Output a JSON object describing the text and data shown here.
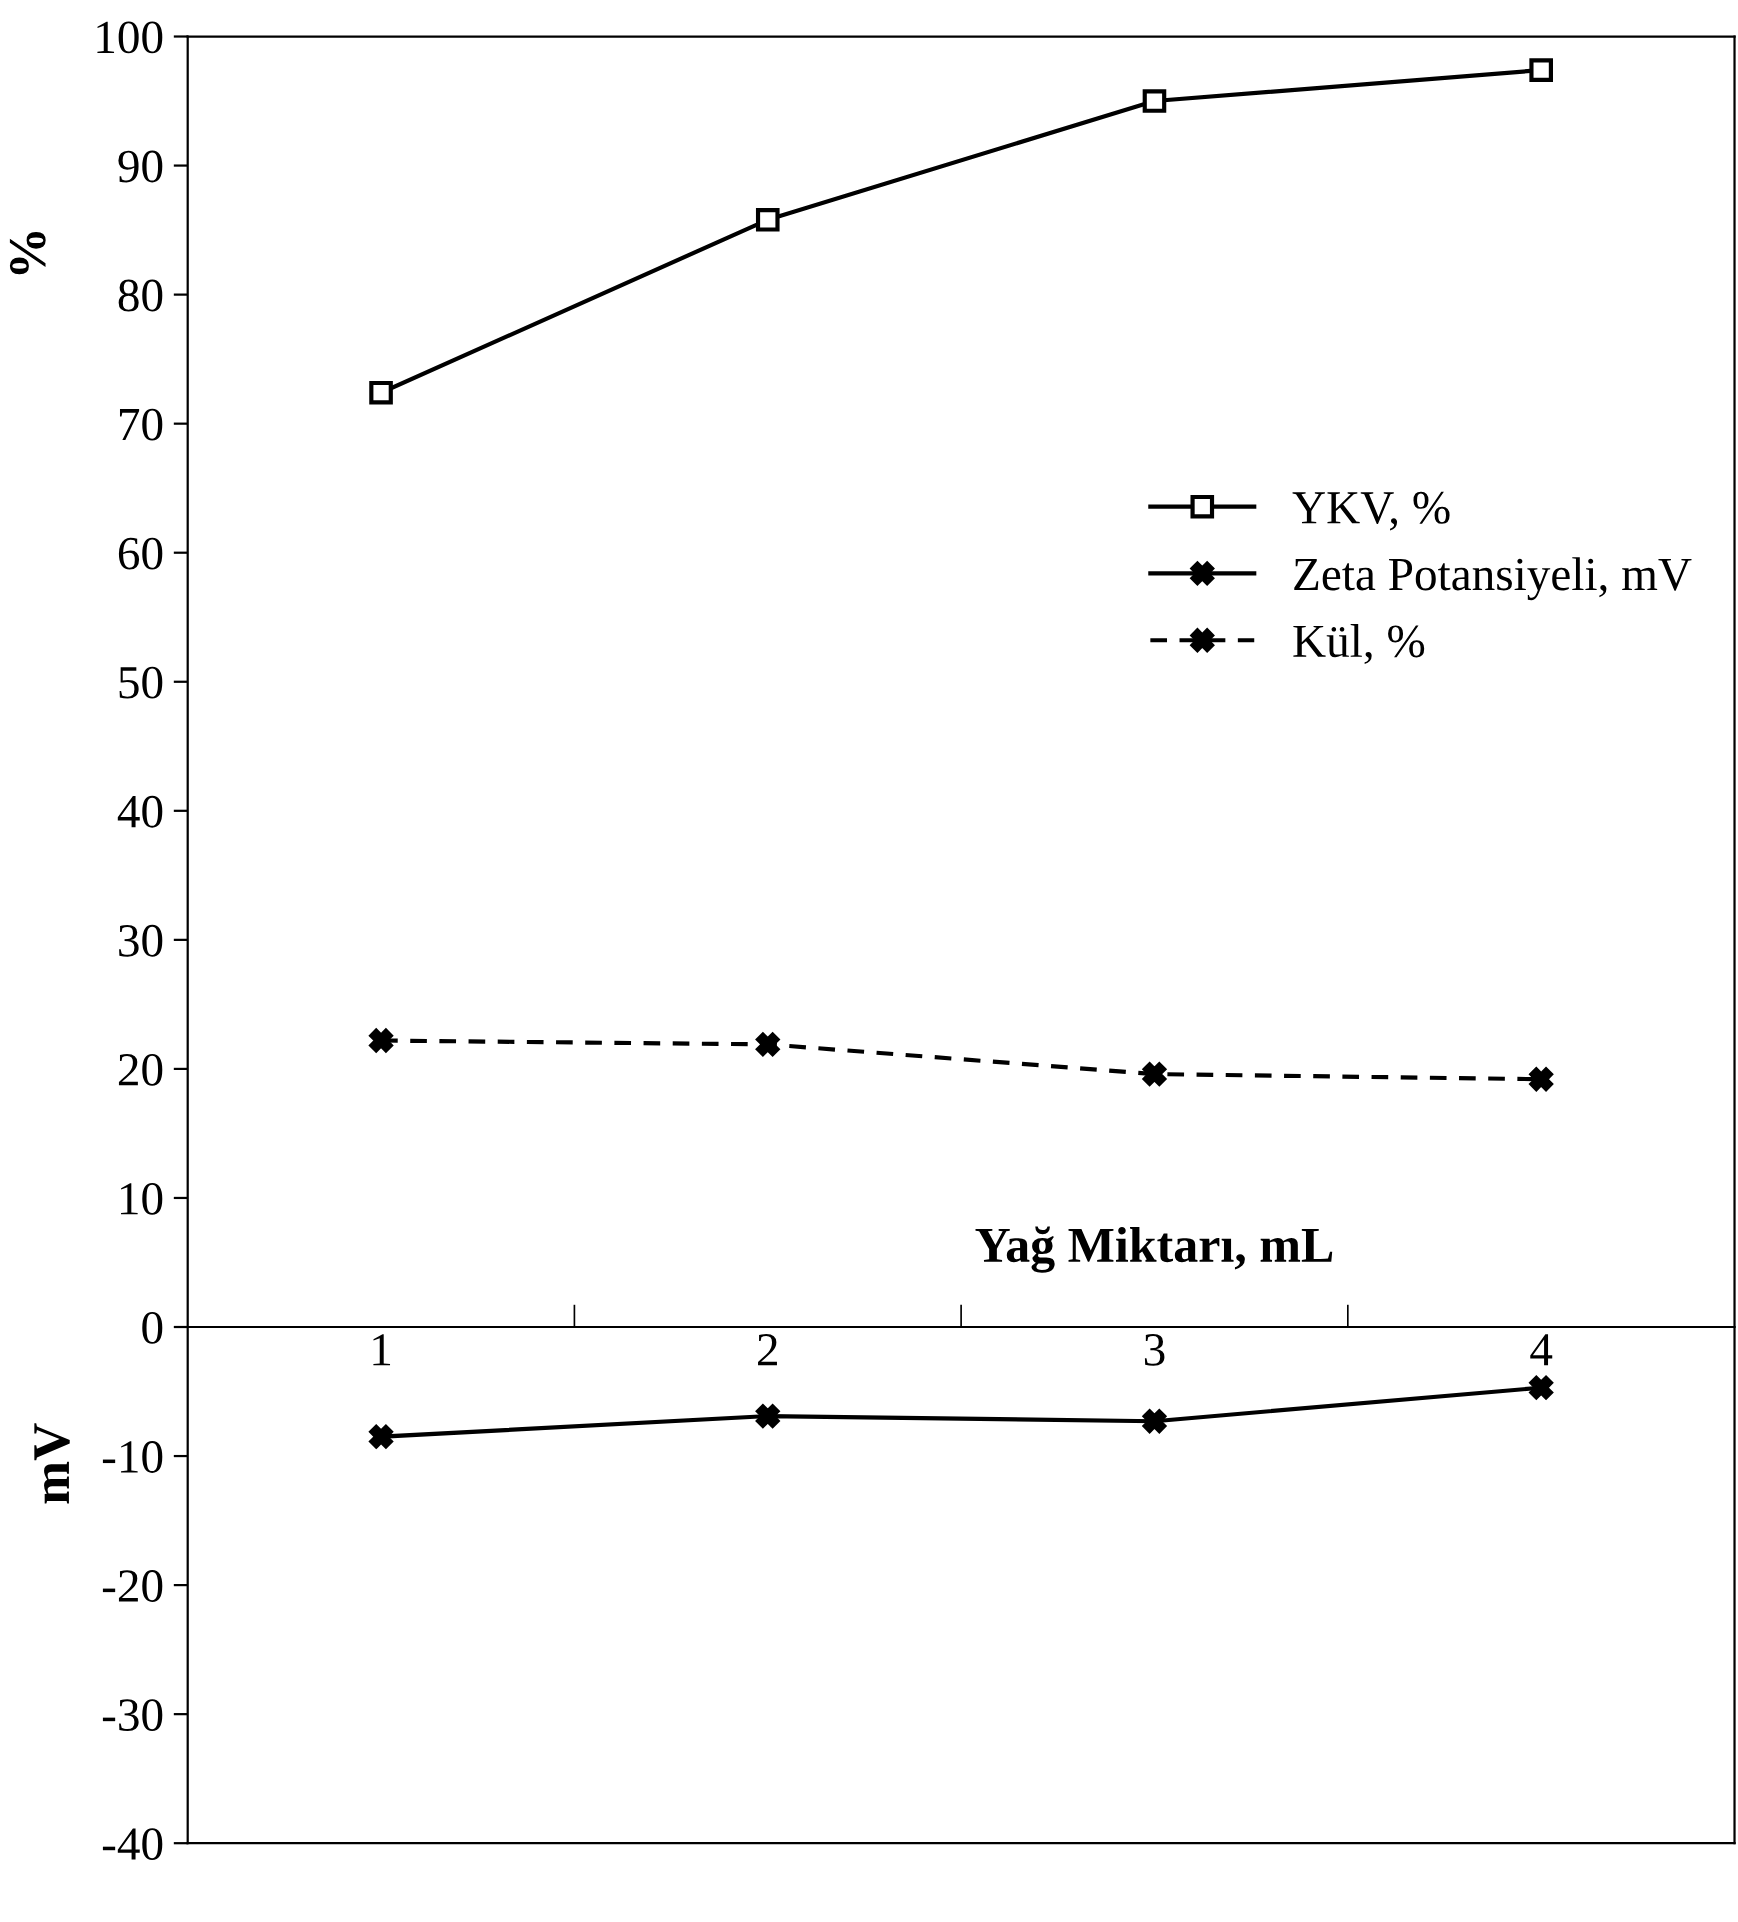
{
  "chart_data": {
    "type": "line",
    "xlabel": "Yağ Miktarı, mL",
    "ylabel": "%",
    "annotations": [
      "mV"
    ],
    "categories": [
      "1",
      "2",
      "3",
      "4"
    ],
    "ylim": [
      -40,
      100
    ],
    "yticks": [
      -40,
      -30,
      -20,
      -10,
      0,
      10,
      20,
      30,
      40,
      50,
      60,
      70,
      80,
      90,
      100
    ],
    "grid": false,
    "legend": "right",
    "series": [
      {
        "name": "YKV, %",
        "color": "#000000",
        "marker": "square",
        "line_style": "solid",
        "values": [
          72.4,
          85.8,
          95.0,
          97.4
        ]
      },
      {
        "name": "Zeta Potansiyeli, mV",
        "color": "#000000",
        "marker": "cross",
        "line_style": "solid",
        "values": [
          -8.5,
          -6.9,
          -7.3,
          -4.7
        ]
      },
      {
        "name": "Kül, %",
        "color": "#000000",
        "marker": "cross",
        "line_style": "dashed",
        "values": [
          22.2,
          21.9,
          19.6,
          19.2
        ]
      }
    ]
  }
}
